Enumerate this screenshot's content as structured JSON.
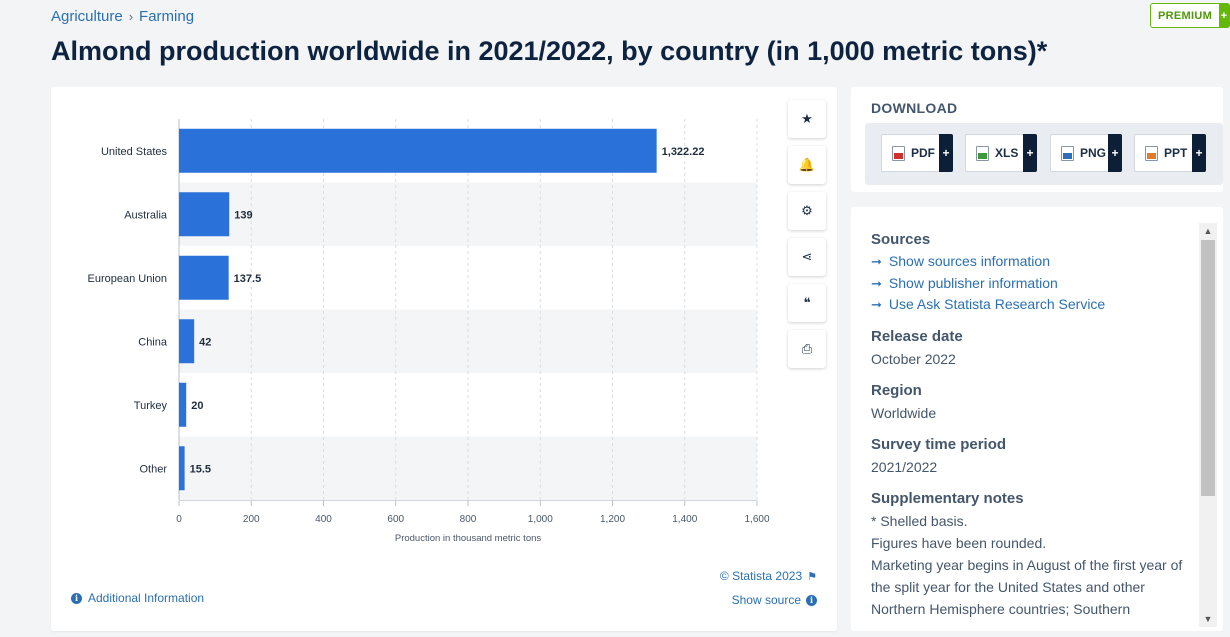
{
  "breadcrumb": {
    "items": [
      "Agriculture",
      "Farming"
    ],
    "separator": "›"
  },
  "page_title": "Almond production worldwide in 2021/2022, by country (in 1,000 metric tons)*",
  "premium": {
    "label": "PREMIUM",
    "plus": "+"
  },
  "colors": {
    "bar": "#2a72d9",
    "link": "#2a6fb5",
    "premium": "#64b80c",
    "band": "#f4f5f6"
  },
  "chart_data": {
    "type": "bar",
    "orientation": "horizontal",
    "categories": [
      "United States",
      "Australia",
      "European Union",
      "China",
      "Turkey",
      "Other"
    ],
    "values": [
      1322.22,
      139,
      137.5,
      42,
      20,
      15.5
    ],
    "value_labels": [
      "1,322.22",
      "139",
      "137.5",
      "42",
      "20",
      "15.5"
    ],
    "xlabel": "Production in thousand metric tons",
    "xlim": [
      0,
      1600
    ],
    "xticks": [
      0,
      200,
      400,
      600,
      800,
      1000,
      1200,
      1400,
      1600
    ],
    "xtick_labels": [
      "0",
      "200",
      "400",
      "600",
      "800",
      "1,000",
      "1,200",
      "1,400",
      "1,600"
    ],
    "grid": "vertical dashed",
    "legend": "none"
  },
  "tools": [
    {
      "name": "favorite-star-icon",
      "glyph": "★"
    },
    {
      "name": "notification-bell-icon",
      "glyph": "🔔"
    },
    {
      "name": "settings-gear-icon",
      "glyph": "⚙"
    },
    {
      "name": "share-icon",
      "glyph": "⋖"
    },
    {
      "name": "citation-quote-icon",
      "glyph": "❝"
    },
    {
      "name": "print-icon",
      "glyph": "⎙"
    }
  ],
  "chart_footer": {
    "copyright": "© Statista 2023",
    "show_source": "Show source",
    "additional_info": "Additional Information"
  },
  "download": {
    "title": "DOWNLOAD",
    "formats": [
      {
        "label": "PDF",
        "color": "#d0312d"
      },
      {
        "label": "XLS",
        "color": "#3c9a3c"
      },
      {
        "label": "PNG",
        "color": "#2f6fb8"
      },
      {
        "label": "PPT",
        "color": "#e07b2c"
      }
    ],
    "plus": "+"
  },
  "info": {
    "sources": {
      "heading": "Sources",
      "links": [
        "Show sources information",
        "Show publisher information",
        "Use Ask Statista Research Service"
      ]
    },
    "release_date": {
      "heading": "Release date",
      "value": "October 2022"
    },
    "region": {
      "heading": "Region",
      "value": "Worldwide"
    },
    "survey_period": {
      "heading": "Survey time period",
      "value": "2021/2022"
    },
    "supplementary": {
      "heading": "Supplementary notes",
      "lines": [
        "* Shelled basis.",
        "Figures have been rounded.",
        "Marketing year begins in August of the first year of",
        "the split year for the United States and other",
        "Northern Hemisphere countries; Southern"
      ]
    }
  }
}
